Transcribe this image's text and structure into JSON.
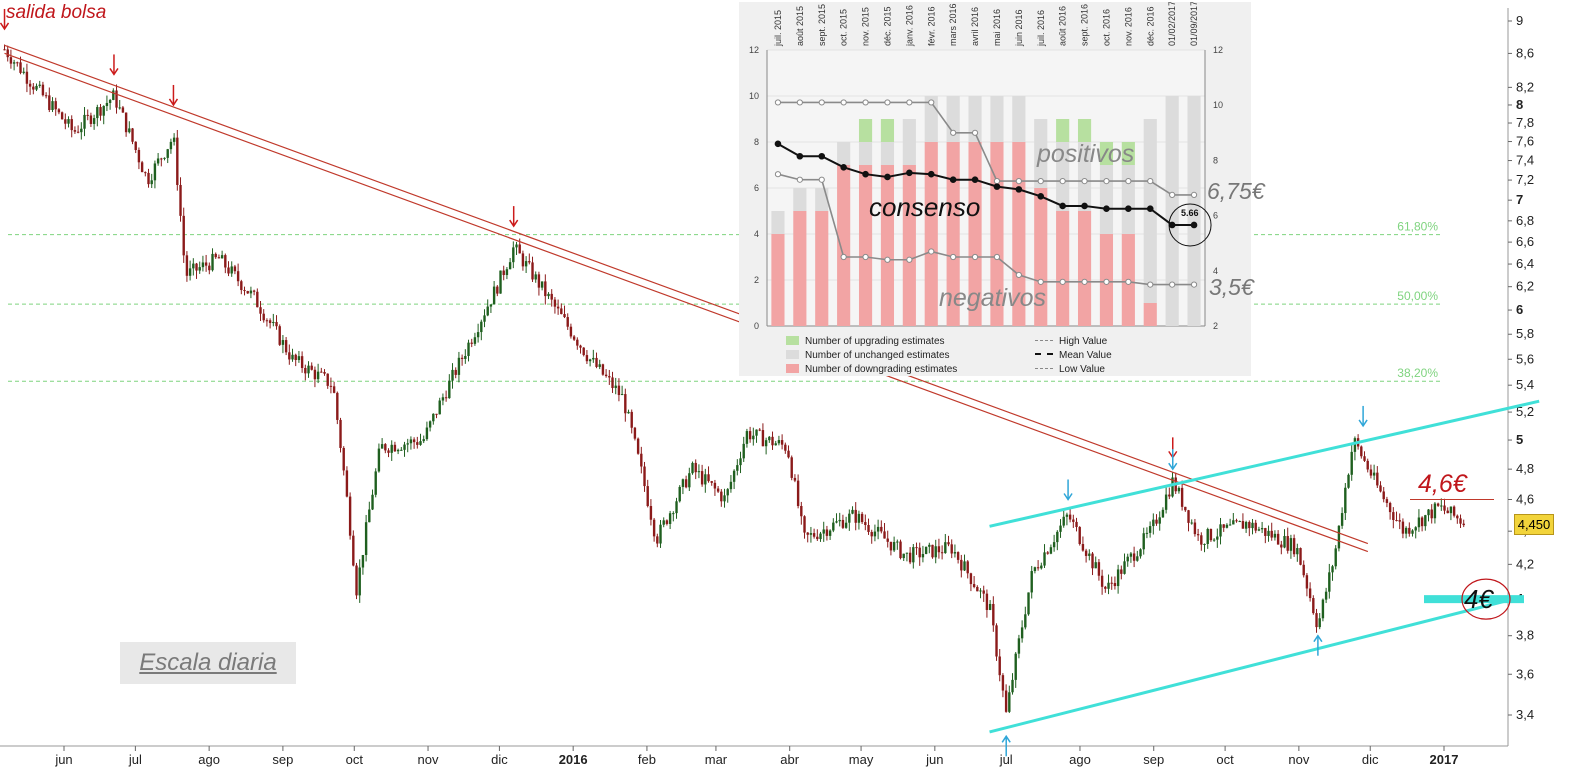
{
  "annotations": {
    "salida": "salida bolsa",
    "price_46": "4,6€",
    "price_4": "4€",
    "escala": "Escala diaria",
    "last_price": "4,450"
  },
  "fib_levels": [
    {
      "label": "61,80%",
      "value": 6.67
    },
    {
      "label": "50,00%",
      "value": 6.05
    },
    {
      "label": "38,20%",
      "value": 5.43
    }
  ],
  "colors": {
    "candle_up": "#1f5f1f",
    "candle_down": "#8b1a1a",
    "trend_red": "#c0392b",
    "channel_cyan": "#40e0d8",
    "fib": "#7fd47f",
    "arrow_red": "#cc1b1b",
    "arrow_blue": "#2fa6d8",
    "upgrade": "#b7e0a0",
    "unchanged": "#dcdcdc",
    "downgrade": "#f2a4a4"
  },
  "chart_data": [
    {
      "type": "candlestick",
      "title": "",
      "x_ticks": [
        "jun",
        "jul",
        "ago",
        "sep",
        "oct",
        "nov",
        "dic",
        "2016",
        "feb",
        "mar",
        "abr",
        "may",
        "jun",
        "jul",
        "ago",
        "sep",
        "oct",
        "nov",
        "dic",
        "2017"
      ],
      "y_ticks": [
        "3,4",
        "3,6",
        "3,8",
        "4",
        "4,2",
        "4,4",
        "4,6",
        "4,8",
        "5",
        "5,2",
        "5,4",
        "5,6",
        "5,8",
        "6",
        "6,2",
        "6,4",
        "6,6",
        "6,8",
        "7",
        "7,2",
        "7,4",
        "7,6",
        "7,8",
        "8",
        "8,2",
        "8,6",
        "9"
      ],
      "ylim": [
        3.25,
        9.05
      ],
      "scale": "log",
      "close_series": [
        {
          "date": "2015-05-07",
          "close": 8.65
        },
        {
          "date": "2015-05-20",
          "close": 8.2
        },
        {
          "date": "2015-06-05",
          "close": 7.7
        },
        {
          "date": "2015-06-22",
          "close": 8.1
        },
        {
          "date": "2015-07-06",
          "close": 7.2
        },
        {
          "date": "2015-07-17",
          "close": 7.65
        },
        {
          "date": "2015-07-22",
          "close": 6.3
        },
        {
          "date": "2015-08-05",
          "close": 6.45
        },
        {
          "date": "2015-08-20",
          "close": 6.1
        },
        {
          "date": "2015-09-05",
          "close": 5.6
        },
        {
          "date": "2015-09-22",
          "close": 5.4
        },
        {
          "date": "2015-10-02",
          "close": 4.05
        },
        {
          "date": "2015-10-12",
          "close": 4.95
        },
        {
          "date": "2015-10-30",
          "close": 5.0
        },
        {
          "date": "2015-11-15",
          "close": 5.6
        },
        {
          "date": "2015-11-30",
          "close": 6.2
        },
        {
          "date": "2015-12-07",
          "close": 6.55
        },
        {
          "date": "2015-12-25",
          "close": 6.0
        },
        {
          "date": "2016-01-08",
          "close": 5.6
        },
        {
          "date": "2016-01-22",
          "close": 5.3
        },
        {
          "date": "2016-02-05",
          "close": 4.35
        },
        {
          "date": "2016-02-20",
          "close": 4.8
        },
        {
          "date": "2016-03-05",
          "close": 4.6
        },
        {
          "date": "2016-03-14",
          "close": 5.05
        },
        {
          "date": "2016-03-31",
          "close": 4.95
        },
        {
          "date": "2016-04-07",
          "close": 4.35
        },
        {
          "date": "2016-04-28",
          "close": 4.5
        },
        {
          "date": "2016-05-20",
          "close": 4.25
        },
        {
          "date": "2016-06-08",
          "close": 4.3
        },
        {
          "date": "2016-06-24",
          "close": 3.95
        },
        {
          "date": "2016-07-01",
          "close": 3.4
        },
        {
          "date": "2016-07-12",
          "close": 4.15
        },
        {
          "date": "2016-07-27",
          "close": 4.5
        },
        {
          "date": "2016-08-12",
          "close": 4.05
        },
        {
          "date": "2016-08-31",
          "close": 4.4
        },
        {
          "date": "2016-09-09",
          "close": 4.72
        },
        {
          "date": "2016-09-20",
          "close": 4.35
        },
        {
          "date": "2016-10-10",
          "close": 4.45
        },
        {
          "date": "2016-10-31",
          "close": 4.3
        },
        {
          "date": "2016-11-09",
          "close": 3.85
        },
        {
          "date": "2016-11-16",
          "close": 4.25
        },
        {
          "date": "2016-11-24",
          "close": 5.0
        },
        {
          "date": "2016-12-05",
          "close": 4.65
        },
        {
          "date": "2016-12-15",
          "close": 4.4
        },
        {
          "date": "2016-12-30",
          "close": 4.55
        },
        {
          "date": "2017-01-10",
          "close": 4.45
        }
      ],
      "trendlines": [
        {
          "name": "bajista",
          "from": {
            "date": "2015-05-07",
            "value": 8.65
          },
          "to": {
            "date": "2016-11-30",
            "value": 4.3
          }
        },
        {
          "name": "canal_superior",
          "from": {
            "date": "2016-06-24",
            "value": 4.43
          },
          "to": {
            "date": "2017-02-10",
            "value": 5.28
          }
        },
        {
          "name": "canal_inferior",
          "from": {
            "date": "2016-06-24",
            "value": 3.32
          },
          "to": {
            "date": "2017-01-30",
            "value": 4.0
          }
        }
      ],
      "levels": [
        {
          "label": "4,6€",
          "value": 4.6
        },
        {
          "label": "4€",
          "value": 4.0
        }
      ],
      "last_value": 4.45
    },
    {
      "type": "bar+line",
      "title": "",
      "categories": [
        "juil. 2015",
        "août 2015",
        "sept. 2015",
        "oct. 2015",
        "nov. 2015",
        "déc. 2015",
        "janv. 2016",
        "févr. 2016",
        "mars 2016",
        "avril 2016",
        "mai 2016",
        "juin 2016",
        "juil. 2016",
        "août 2016",
        "sept. 2016",
        "oct. 2016",
        "nov. 2016",
        "déc. 2016",
        "01/02/2017",
        "01/09/2017"
      ],
      "ylim_left": [
        0,
        12
      ],
      "y_ticks_left": [
        "0",
        "2",
        "4",
        "6",
        "8",
        "10",
        "12"
      ],
      "ylim_right": [
        2,
        12
      ],
      "y_ticks_right": [
        "2",
        "4",
        "6",
        "8",
        "10",
        "12"
      ],
      "series": [
        {
          "name": "Number of upgrading estimates",
          "kind": "bar",
          "values": [
            0,
            0,
            0,
            0,
            1,
            1,
            0,
            0,
            0,
            0,
            0,
            0,
            0,
            1,
            1,
            1,
            1,
            0,
            0,
            0
          ]
        },
        {
          "name": "Number of unchanged estimates",
          "kind": "bar",
          "values": [
            1,
            1,
            1,
            1,
            1,
            1,
            2,
            2,
            2,
            2,
            2,
            2,
            3,
            3,
            3,
            3,
            3,
            8,
            10,
            10
          ]
        },
        {
          "name": "Number of downgrading estimates",
          "kind": "bar",
          "values": [
            4,
            5,
            5,
            7,
            7,
            7,
            7,
            8,
            8,
            8,
            8,
            8,
            6,
            5,
            5,
            4,
            4,
            1,
            0,
            0
          ]
        },
        {
          "name": "High Value",
          "kind": "line",
          "values": [
            10.1,
            10.1,
            10.1,
            10.1,
            10.1,
            10.1,
            10.1,
            10.1,
            9.0,
            9.0,
            7.25,
            7.25,
            7.25,
            7.25,
            7.25,
            7.25,
            7.25,
            7.25,
            6.75,
            6.75
          ]
        },
        {
          "name": "Mean Value",
          "kind": "line",
          "values": [
            8.6,
            8.15,
            8.15,
            7.75,
            7.5,
            7.4,
            7.55,
            7.5,
            7.3,
            7.3,
            7.05,
            6.95,
            6.7,
            6.35,
            6.35,
            6.25,
            6.25,
            6.25,
            5.66,
            5.66
          ]
        },
        {
          "name": "Low Value",
          "kind": "line",
          "values": [
            7.5,
            7.3,
            7.3,
            4.5,
            4.5,
            4.4,
            4.4,
            4.7,
            4.5,
            4.5,
            4.5,
            3.85,
            3.6,
            3.6,
            3.6,
            3.6,
            3.6,
            3.5,
            3.5,
            3.5
          ]
        }
      ],
      "annotations": {
        "positivos": "positivos",
        "negativos": "negativos",
        "consenso": "consenso",
        "high": "6,75€",
        "low": "3,5€",
        "mean_marker": "5.66"
      }
    }
  ]
}
